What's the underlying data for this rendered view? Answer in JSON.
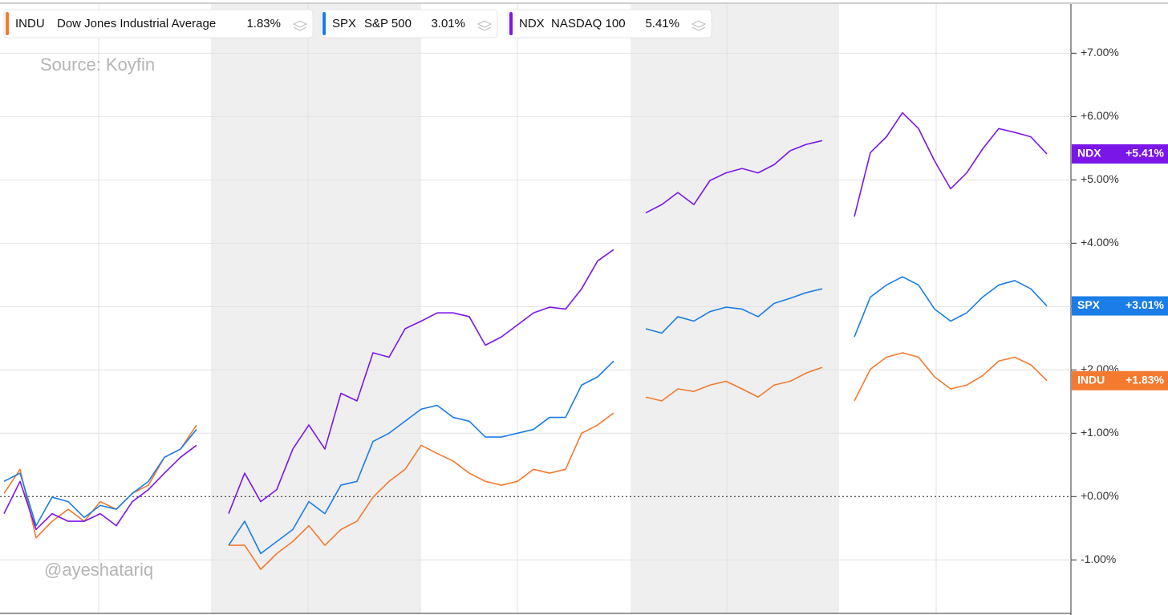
{
  "chart_data": {
    "type": "line",
    "annotations": [
      "Source: Koyfin",
      "@ayeshatariq"
    ],
    "ylim": [
      -1.87,
      7.84
    ],
    "yticks": [
      {
        "value": -1,
        "label": "-1.00%"
      },
      {
        "value": 0,
        "label": "+0.00%"
      },
      {
        "value": 1,
        "label": "+1.00%"
      },
      {
        "value": 2,
        "label": "+2.00%"
      },
      {
        "value": 3,
        "label": "+3.00%"
      },
      {
        "value": 4,
        "label": "+4.00%"
      },
      {
        "value": 5,
        "label": "+5.00%"
      },
      {
        "value": 6,
        "label": "+6.00%"
      },
      {
        "value": 7,
        "label": "+7.00%"
      }
    ],
    "grid": true,
    "series": [
      {
        "name": "INDU",
        "description": "Dow Jones Industrial Average",
        "legend_value": "1.83%",
        "tag": "+1.83%",
        "color": "#f47a30",
        "values": [
          0.05,
          0.43,
          -0.65,
          -0.39,
          -0.2,
          -0.39,
          -0.08,
          -0.2,
          0.05,
          0.18,
          0.62,
          0.75,
          1.13,
          null,
          -0.77,
          -0.77,
          -1.15,
          -0.9,
          -0.71,
          -0.46,
          -0.77,
          -0.52,
          -0.39,
          -0.01,
          0.24,
          0.43,
          0.81,
          0.68,
          0.56,
          0.37,
          0.24,
          0.18,
          0.24,
          0.43,
          0.37,
          0.43,
          1.0,
          1.13,
          1.32,
          null,
          1.57,
          1.51,
          1.7,
          1.66,
          1.76,
          1.82,
          1.7,
          1.57,
          1.76,
          1.82,
          1.95,
          2.04,
          null,
          1.51,
          2.01,
          2.2,
          2.27,
          2.2,
          1.89,
          1.7,
          1.76,
          1.91,
          2.14,
          2.2,
          2.08,
          1.83
        ]
      },
      {
        "name": "SPX",
        "description": "S&P 500",
        "legend_value": "3.01%",
        "tag": "+3.01%",
        "color": "#1a7de8",
        "values": [
          0.24,
          0.37,
          -0.46,
          -0.01,
          -0.08,
          -0.33,
          -0.14,
          -0.2,
          0.05,
          0.24,
          0.62,
          0.75,
          1.06,
          null,
          -0.77,
          -0.39,
          -0.9,
          -0.71,
          -0.52,
          -0.08,
          -0.27,
          0.18,
          0.24,
          0.87,
          1.0,
          1.19,
          1.38,
          1.44,
          1.25,
          1.19,
          0.94,
          0.94,
          1.0,
          1.06,
          1.25,
          1.25,
          1.76,
          1.89,
          2.14,
          null,
          2.65,
          2.58,
          2.84,
          2.77,
          2.92,
          2.99,
          2.96,
          2.84,
          3.05,
          3.13,
          3.22,
          3.28,
          null,
          2.52,
          3.15,
          3.34,
          3.47,
          3.34,
          2.96,
          2.77,
          2.9,
          3.15,
          3.34,
          3.41,
          3.28,
          3.01
        ]
      },
      {
        "name": "NDX",
        "description": "NASDAQ 100",
        "legend_value": "5.41%",
        "tag": "+5.41%",
        "color": "#7b16e8",
        "values": [
          -0.27,
          0.24,
          -0.52,
          -0.27,
          -0.39,
          -0.39,
          -0.27,
          -0.46,
          -0.08,
          0.11,
          0.37,
          0.62,
          0.81,
          null,
          -0.27,
          0.37,
          -0.08,
          0.11,
          0.75,
          1.13,
          0.75,
          1.63,
          1.51,
          2.27,
          2.2,
          2.65,
          2.77,
          2.9,
          2.9,
          2.84,
          2.39,
          2.52,
          2.71,
          2.9,
          2.99,
          2.96,
          3.28,
          3.72,
          3.9,
          null,
          4.48,
          4.61,
          4.8,
          4.61,
          4.99,
          5.11,
          5.18,
          5.11,
          5.24,
          5.46,
          5.56,
          5.62,
          null,
          4.42,
          5.43,
          5.68,
          6.06,
          5.81,
          5.3,
          4.86,
          5.11,
          5.49,
          5.81,
          5.75,
          5.68,
          5.41
        ]
      }
    ]
  }
}
